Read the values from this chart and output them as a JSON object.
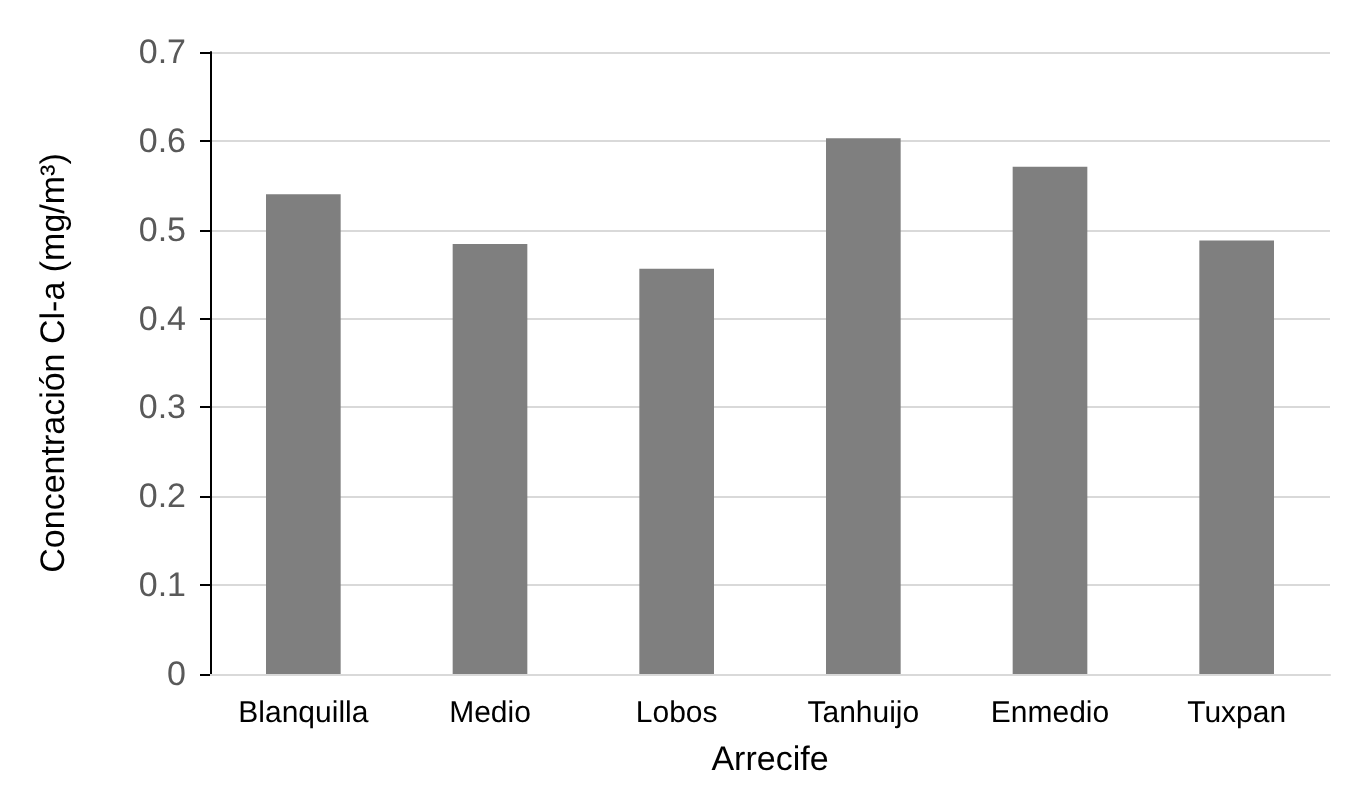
{
  "chart_data": {
    "type": "bar",
    "xlabel": "Arrecife",
    "ylabel": "Concentración Cl-a (mg/m³)",
    "categories": [
      "Blanquilla",
      "Medio",
      "Lobos",
      "Tanhuijo",
      "Enmedio",
      "Tuxpan"
    ],
    "values": [
      0.54,
      0.484,
      0.456,
      0.603,
      0.571,
      0.488
    ],
    "color": "#7f7f7f",
    "ylim": [
      0,
      0.7
    ],
    "yticks": [
      0,
      0.1,
      0.2,
      0.3,
      0.4,
      0.5,
      0.6,
      0.7
    ],
    "grid": "y"
  }
}
